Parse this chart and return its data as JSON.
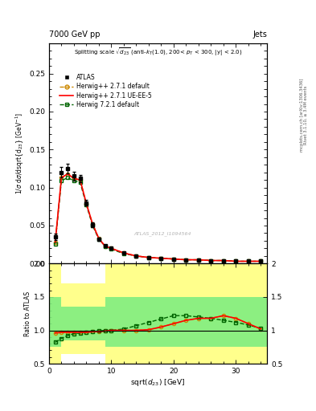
{
  "title_top": "7000 GeV pp",
  "title_right": "Jets",
  "plot_title": "Splitting scale $\\sqrt{d_{23}}$ (anti-$k_T$(1.0), 200< $p_T$ < 300, |y| < 2.0)",
  "xlabel": "sqrt($d_{23}$) [GeV]",
  "ylabel": "1/$\\sigma$ d$\\sigma$/dsqrt($d_{23}$) [GeV$^{-1}$]",
  "ylabel_ratio": "Ratio to ATLAS",
  "xlim": [
    0,
    35
  ],
  "ylim_main": [
    0,
    0.29
  ],
  "ylim_ratio": [
    0.5,
    2.0
  ],
  "watermark": "ATLAS_2012_I1094564",
  "rivet_text": "Rivet 3.1.10, ≥ 3.4M events",
  "mcplots_text": "mcplots.cern.ch [arXiv:1306.3436]",
  "atlas_data_x": [
    1.0,
    2.0,
    3.0,
    4.0,
    5.0,
    6.0,
    7.0,
    8.0,
    9.0,
    10.0,
    12.0,
    14.0,
    16.0,
    18.0,
    20.0,
    22.0,
    24.0,
    26.0,
    28.0,
    30.0,
    32.0,
    34.0
  ],
  "atlas_data_y": [
    0.035,
    0.12,
    0.125,
    0.115,
    0.112,
    0.08,
    0.051,
    0.032,
    0.024,
    0.02,
    0.014,
    0.01,
    0.008,
    0.007,
    0.006,
    0.005,
    0.005,
    0.004,
    0.004,
    0.003,
    0.003,
    0.003
  ],
  "atlas_data_yerr": [
    0.004,
    0.007,
    0.006,
    0.006,
    0.005,
    0.004,
    0.003,
    0.002,
    0.001,
    0.001,
    0.001,
    0.001,
    0.001,
    0.001,
    0.001,
    0.0005,
    0.0005,
    0.0005,
    0.0005,
    0.0005,
    0.0005,
    0.0005
  ],
  "hw271_def_x": [
    1.0,
    2.0,
    3.0,
    4.0,
    5.0,
    6.0,
    7.0,
    8.0,
    9.0,
    10.0,
    12.0,
    14.0,
    16.0,
    18.0,
    20.0,
    22.0,
    24.0,
    26.0,
    28.0,
    30.0,
    32.0,
    34.0
  ],
  "hw271_def_y": [
    0.028,
    0.113,
    0.118,
    0.112,
    0.11,
    0.079,
    0.052,
    0.033,
    0.023,
    0.02,
    0.014,
    0.01,
    0.008,
    0.007,
    0.006,
    0.005,
    0.005,
    0.004,
    0.004,
    0.003,
    0.003,
    0.003
  ],
  "hw271_ueee5_x": [
    1.0,
    2.0,
    3.0,
    4.0,
    5.0,
    6.0,
    7.0,
    8.0,
    9.0,
    10.0,
    12.0,
    14.0,
    16.0,
    18.0,
    20.0,
    22.0,
    24.0,
    26.0,
    28.0,
    30.0,
    32.0,
    34.0
  ],
  "hw271_ueee5_y": [
    0.028,
    0.113,
    0.118,
    0.112,
    0.11,
    0.079,
    0.052,
    0.033,
    0.023,
    0.02,
    0.014,
    0.01,
    0.008,
    0.007,
    0.006,
    0.005,
    0.005,
    0.004,
    0.004,
    0.003,
    0.003,
    0.003
  ],
  "hw721_def_x": [
    1.0,
    2.0,
    3.0,
    4.0,
    5.0,
    6.0,
    7.0,
    8.0,
    9.0,
    10.0,
    12.0,
    14.0,
    16.0,
    18.0,
    20.0,
    22.0,
    24.0,
    26.0,
    28.0,
    30.0,
    32.0,
    34.0
  ],
  "hw721_def_y": [
    0.026,
    0.109,
    0.113,
    0.109,
    0.107,
    0.077,
    0.05,
    0.032,
    0.023,
    0.019,
    0.013,
    0.01,
    0.008,
    0.007,
    0.006,
    0.005,
    0.005,
    0.004,
    0.004,
    0.003,
    0.003,
    0.003
  ],
  "ratio_hw271_def_y": [
    0.96,
    0.97,
    0.97,
    0.97,
    0.97,
    0.97,
    0.98,
    0.98,
    0.99,
    1.0,
    1.0,
    1.0,
    1.01,
    1.05,
    1.1,
    1.15,
    1.18,
    1.18,
    1.22,
    1.18,
    1.1,
    1.02
  ],
  "ratio_hw271_ueee5_y": [
    0.96,
    0.97,
    0.97,
    0.97,
    0.97,
    0.97,
    0.98,
    0.98,
    0.99,
    1.0,
    1.0,
    1.0,
    1.01,
    1.05,
    1.1,
    1.15,
    1.18,
    1.18,
    1.22,
    1.18,
    1.1,
    1.02
  ],
  "ratio_hw721_def_y": [
    0.82,
    0.88,
    0.92,
    0.95,
    0.96,
    0.97,
    0.98,
    0.99,
    1.0,
    1.0,
    1.02,
    1.07,
    1.12,
    1.17,
    1.22,
    1.22,
    1.2,
    1.18,
    1.15,
    1.12,
    1.08,
    1.03
  ],
  "yellow_band_edges": [
    0,
    1,
    2,
    4,
    9,
    35
  ],
  "yellow_band_low": [
    0.5,
    0.5,
    0.65,
    0.65,
    0.5,
    0.5
  ],
  "yellow_band_high": [
    2.0,
    2.0,
    1.7,
    1.7,
    2.0,
    2.0
  ],
  "green_band_edges": [
    0,
    1,
    2,
    4,
    9,
    35
  ],
  "green_band_low": [
    0.75,
    0.75,
    0.85,
    0.85,
    0.75,
    0.75
  ],
  "green_band_high": [
    1.5,
    1.5,
    1.35,
    1.35,
    1.5,
    1.5
  ],
  "color_atlas": "#000000",
  "color_hw271_def": "#cc8800",
  "color_hw271_ueee5": "#FF0000",
  "color_hw721_def": "#006400",
  "color_yellow": "#FFFF80",
  "color_green": "#80EE80",
  "bg_color": "#ffffff"
}
